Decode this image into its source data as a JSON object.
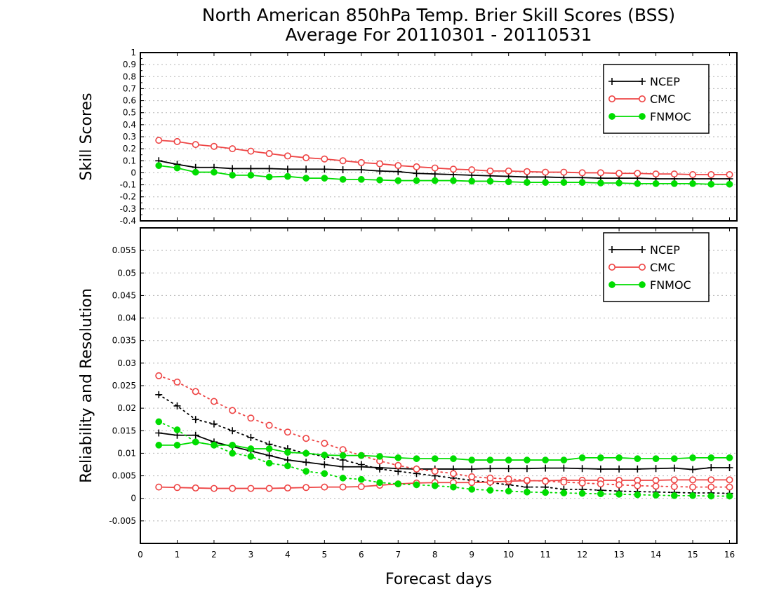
{
  "figure": {
    "title_line1": "North American 850hPa Temp. Brier Skill Scores (BSS)",
    "title_line2": "Average For 20110301 - 20110531",
    "xlabel": "Forecast days"
  },
  "chart_data": [
    {
      "type": "line",
      "ylabel": "Skill Scores",
      "xlim": [
        0,
        16.2
      ],
      "ylim": [
        -0.4,
        1.0
      ],
      "xticks": [
        "0",
        "1",
        "2",
        "3",
        "4",
        "5",
        "6",
        "7",
        "8",
        "9",
        "10",
        "11",
        "12",
        "13",
        "14",
        "15",
        "16"
      ],
      "yticks": [
        "1",
        "0.9",
        "0.8",
        "0.7",
        "0.6",
        "0.5",
        "0.4",
        "0.3",
        "0.2",
        "0.1",
        "0",
        "-0.1",
        "-0.2",
        "-0.3",
        "-0.4"
      ],
      "grid": true,
      "legend_position": "top-right",
      "x": [
        0.5,
        1,
        1.5,
        2,
        2.5,
        3,
        3.5,
        4,
        4.5,
        5,
        5.5,
        6,
        6.5,
        7,
        7.5,
        8,
        8.5,
        9,
        9.5,
        10,
        10.5,
        11,
        11.5,
        12,
        12.5,
        13,
        13.5,
        14,
        14.5,
        15,
        15.5,
        16
      ],
      "series": [
        {
          "name": "NCEP",
          "color": "#000000",
          "marker": "plus",
          "style": "solid",
          "values": [
            0.1,
            0.07,
            0.045,
            0.045,
            0.035,
            0.035,
            0.035,
            0.03,
            0.03,
            0.03,
            0.025,
            0.025,
            0.015,
            0.01,
            -0.005,
            -0.01,
            -0.015,
            -0.02,
            -0.025,
            -0.03,
            -0.035,
            -0.035,
            -0.04,
            -0.04,
            -0.045,
            -0.045,
            -0.045,
            -0.05,
            -0.05,
            -0.05,
            -0.05,
            -0.05
          ]
        },
        {
          "name": "CMC",
          "color": "#ee4444",
          "marker": "open-circle",
          "style": "solid",
          "values": [
            0.27,
            0.26,
            0.235,
            0.22,
            0.2,
            0.18,
            0.16,
            0.14,
            0.125,
            0.115,
            0.1,
            0.085,
            0.075,
            0.06,
            0.05,
            0.04,
            0.03,
            0.025,
            0.015,
            0.015,
            0.01,
            0.005,
            0.005,
            0.0,
            0.0,
            -0.005,
            -0.005,
            -0.01,
            -0.01,
            -0.015,
            -0.015,
            -0.015
          ]
        },
        {
          "name": "FNMOC",
          "color": "#00dd00",
          "marker": "filled-circle",
          "style": "solid",
          "values": [
            0.06,
            0.04,
            0.005,
            0.005,
            -0.02,
            -0.02,
            -0.035,
            -0.03,
            -0.045,
            -0.045,
            -0.055,
            -0.055,
            -0.06,
            -0.065,
            -0.065,
            -0.065,
            -0.065,
            -0.07,
            -0.07,
            -0.075,
            -0.08,
            -0.08,
            -0.08,
            -0.08,
            -0.085,
            -0.085,
            -0.09,
            -0.09,
            -0.09,
            -0.09,
            -0.095,
            -0.095
          ]
        }
      ]
    },
    {
      "type": "line",
      "ylabel": "Reliability and Resolution",
      "xlim": [
        0,
        16.2
      ],
      "ylim": [
        -0.01,
        0.06
      ],
      "xticks": [
        "0",
        "1",
        "2",
        "3",
        "4",
        "5",
        "6",
        "7",
        "8",
        "9",
        "10",
        "11",
        "12",
        "13",
        "14",
        "15",
        "16"
      ],
      "yticks": [
        "0.055",
        "0.05",
        "0.045",
        "0.04",
        "0.035",
        "0.03",
        "0.025",
        "0.02",
        "0.015",
        "0.01",
        "0.005",
        "0",
        "-0.005"
      ],
      "grid": true,
      "legend_position": "top-right",
      "x": [
        0.5,
        1,
        1.5,
        2,
        2.5,
        3,
        3.5,
        4,
        4.5,
        5,
        5.5,
        6,
        6.5,
        7,
        7.5,
        8,
        8.5,
        9,
        9.5,
        10,
        10.5,
        11,
        11.5,
        12,
        12.5,
        13,
        13.5,
        14,
        14.5,
        15,
        15.5,
        16
      ],
      "series": [
        {
          "name": "NCEP",
          "color": "#000000",
          "marker": "plus",
          "style": "solid",
          "values": [
            0.0145,
            0.014,
            0.014,
            0.0125,
            0.0115,
            0.0105,
            0.0095,
            0.0085,
            0.008,
            0.0075,
            0.007,
            0.007,
            0.0068,
            0.0066,
            0.0065,
            0.0065,
            0.0065,
            0.0065,
            0.0066,
            0.0066,
            0.0066,
            0.0067,
            0.0067,
            0.0066,
            0.0065,
            0.0065,
            0.0065,
            0.0066,
            0.0067,
            0.0064,
            0.0068,
            0.0068
          ]
        },
        {
          "name": "",
          "color": "#000000",
          "marker": "plus",
          "style": "dotted",
          "values": [
            0.023,
            0.0205,
            0.0175,
            0.0165,
            0.015,
            0.0135,
            0.012,
            0.011,
            0.01,
            0.0093,
            0.0085,
            0.0075,
            0.0065,
            0.006,
            0.0055,
            0.005,
            0.0045,
            0.004,
            0.0035,
            0.003,
            0.0025,
            0.0025,
            0.002,
            0.002,
            0.0018,
            0.0016,
            0.0015,
            0.0014,
            0.0013,
            0.0012,
            0.0012,
            0.0011
          ]
        },
        {
          "name": "CMC",
          "color": "#ee4444",
          "marker": "open-circle",
          "style": "solid",
          "values": [
            0.0025,
            0.0024,
            0.0023,
            0.0022,
            0.0022,
            0.0022,
            0.0022,
            0.0023,
            0.0024,
            0.0025,
            0.0025,
            0.0026,
            0.0029,
            0.0032,
            0.0034,
            0.0035,
            0.0035,
            0.0035,
            0.0036,
            0.0038,
            0.0039,
            0.0039,
            0.004,
            0.004,
            0.004,
            0.004,
            0.004,
            0.004,
            0.0041,
            0.0041,
            0.0041,
            0.0041
          ]
        },
        {
          "name": "",
          "color": "#ee4444",
          "marker": "open-circle",
          "style": "dotted",
          "values": [
            0.0272,
            0.0258,
            0.0237,
            0.0215,
            0.0195,
            0.0178,
            0.0162,
            0.0147,
            0.0133,
            0.0122,
            0.0108,
            0.0095,
            0.0083,
            0.0073,
            0.0065,
            0.006,
            0.0055,
            0.0048,
            0.0045,
            0.0043,
            0.004,
            0.0038,
            0.0036,
            0.0034,
            0.0032,
            0.003,
            0.0028,
            0.0027,
            0.0026,
            0.0025,
            0.0025,
            0.0025
          ]
        },
        {
          "name": "FNMOC",
          "color": "#00dd00",
          "marker": "filled-circle",
          "style": "solid",
          "values": [
            0.0118,
            0.0118,
            0.0125,
            0.0118,
            0.0118,
            0.011,
            0.011,
            0.0102,
            0.01,
            0.0096,
            0.0095,
            0.0095,
            0.0093,
            0.009,
            0.0088,
            0.0088,
            0.0088,
            0.0085,
            0.0085,
            0.0085,
            0.0085,
            0.0085,
            0.0085,
            0.009,
            0.009,
            0.009,
            0.0088,
            0.0088,
            0.0088,
            0.009,
            0.009,
            0.009
          ]
        },
        {
          "name": "",
          "color": "#00dd00",
          "marker": "filled-circle",
          "style": "dotted",
          "values": [
            0.017,
            0.0152,
            0.0125,
            0.0118,
            0.01,
            0.0093,
            0.0078,
            0.0072,
            0.006,
            0.0055,
            0.0045,
            0.0042,
            0.0035,
            0.0032,
            0.003,
            0.0028,
            0.0025,
            0.002,
            0.0018,
            0.0016,
            0.0014,
            0.0013,
            0.0012,
            0.0011,
            0.001,
            0.0009,
            0.0008,
            0.0007,
            0.0006,
            0.0006,
            0.0005,
            0.0005
          ]
        }
      ]
    }
  ]
}
